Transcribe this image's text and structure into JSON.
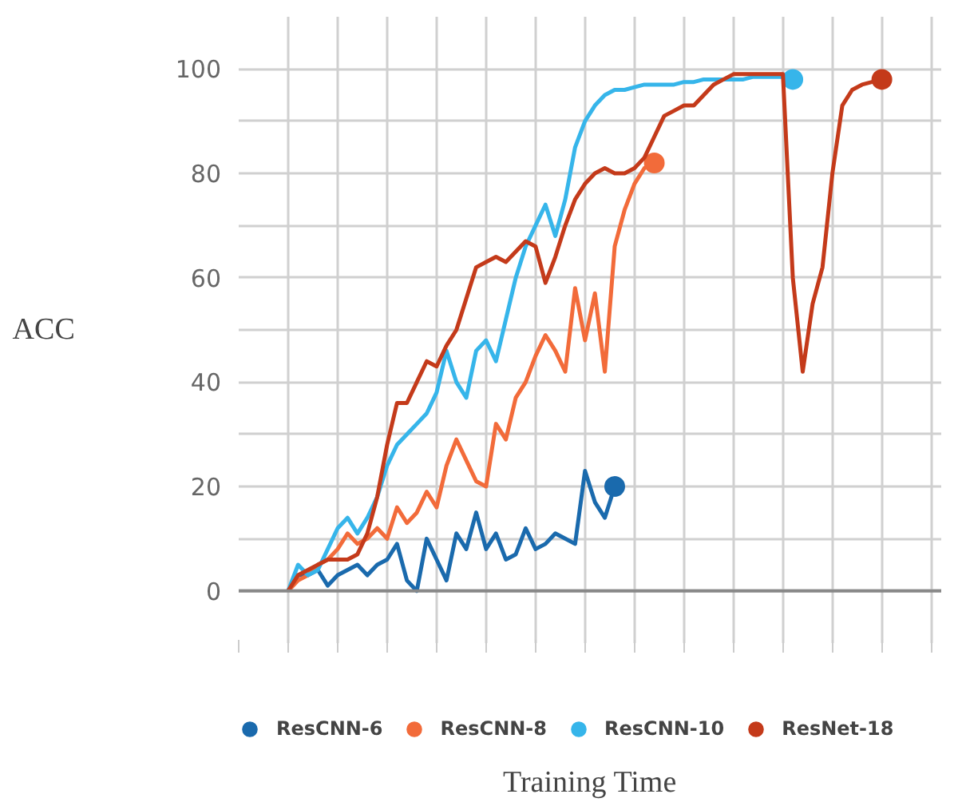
{
  "chart_data": {
    "type": "line",
    "xlabel": "Training Time",
    "ylabel": "ACC",
    "categories": [
      null,
      null,
      null,
      null,
      null,
      null,
      null,
      null,
      null,
      null,
      null,
      null,
      null,
      null,
      null,
      null,
      null,
      null,
      null,
      null,
      null,
      null,
      null,
      null,
      null,
      null,
      null,
      null,
      null,
      null,
      null,
      null,
      null,
      null,
      null,
      null,
      null,
      null,
      null,
      null,
      null,
      null,
      null,
      null,
      null,
      null,
      null,
      null,
      null,
      null,
      null,
      null,
      null,
      null,
      null,
      null,
      null,
      null,
      null,
      null,
      null
    ],
    "series": [
      {
        "name": "ResCNN-6",
        "color": "#1a6aad",
        "values": [
          0,
          3,
          3,
          4,
          1,
          3,
          4,
          5,
          3,
          5,
          6,
          9,
          2,
          0,
          10,
          6,
          2,
          11,
          8,
          15,
          8,
          11,
          6,
          7,
          12,
          8,
          9,
          11,
          10,
          9,
          23,
          17,
          14,
          20,
          null,
          null,
          null,
          null,
          null,
          null,
          null,
          null,
          null,
          null,
          null,
          null,
          null,
          null,
          null,
          null,
          null,
          null,
          null,
          null,
          null,
          null,
          null,
          null,
          null,
          null,
          null
        ]
      },
      {
        "name": "ResCNN-8",
        "color": "#f26b3a",
        "values": [
          0,
          2,
          3,
          5,
          6,
          8,
          11,
          9,
          10,
          12,
          10,
          16,
          13,
          15,
          19,
          16,
          24,
          29,
          25,
          21,
          20,
          32,
          29,
          37,
          40,
          45,
          49,
          46,
          42,
          58,
          48,
          57,
          42,
          66,
          73,
          78,
          81,
          82,
          null,
          null,
          null,
          null,
          null,
          null,
          null,
          null,
          null,
          null,
          null,
          null,
          null,
          null,
          null,
          null,
          null,
          null,
          null,
          null,
          null,
          null,
          null
        ]
      },
      {
        "name": "ResCNN-10",
        "color": "#36b5ea",
        "values": [
          0,
          5,
          3,
          4,
          8,
          12,
          14,
          11,
          14,
          18,
          24,
          28,
          30,
          32,
          34,
          38,
          46,
          40,
          37,
          46,
          48,
          44,
          52,
          60,
          66,
          70,
          74,
          68,
          75,
          85,
          90,
          93,
          95,
          96,
          96,
          96.5,
          97,
          97,
          97,
          97,
          97.5,
          97.5,
          98,
          98,
          98,
          98,
          98,
          98.5,
          98.5,
          98.5,
          98.5,
          98,
          null,
          null,
          null,
          null,
          null,
          null,
          null,
          null,
          null
        ]
      },
      {
        "name": "ResNet-18",
        "color": "#c43a1a",
        "values": [
          0,
          3,
          4,
          5,
          6,
          6,
          6,
          7,
          11,
          18,
          28,
          36,
          36,
          40,
          44,
          43,
          47,
          50,
          56,
          62,
          63,
          64,
          63,
          65,
          67,
          66,
          59,
          64,
          70,
          75,
          78,
          80,
          81,
          80,
          80,
          81,
          83,
          87,
          91,
          92,
          93,
          93,
          95,
          97,
          98,
          99,
          99,
          99,
          99,
          99,
          99,
          60,
          42,
          55,
          62,
          80,
          93,
          96,
          97,
          97.5,
          98
        ]
      }
    ],
    "ylim": [
      -10,
      110
    ],
    "yticks": [
      0,
      {
        "value": 10,
        "label": null
      },
      20,
      {
        "value": 30,
        "label": null
      },
      40,
      {
        "value": 50,
        "label": null
      },
      60,
      {
        "value": 70,
        "label": null
      },
      80,
      {
        "value": 90,
        "label": null
      },
      100
    ],
    "ref_lines": [
      {
        "axis": "y",
        "value": 0,
        "color": "#888888"
      }
    ],
    "grid": true,
    "legend": "bottom",
    "tick_labels": "y",
    "line_style": "solid"
  }
}
